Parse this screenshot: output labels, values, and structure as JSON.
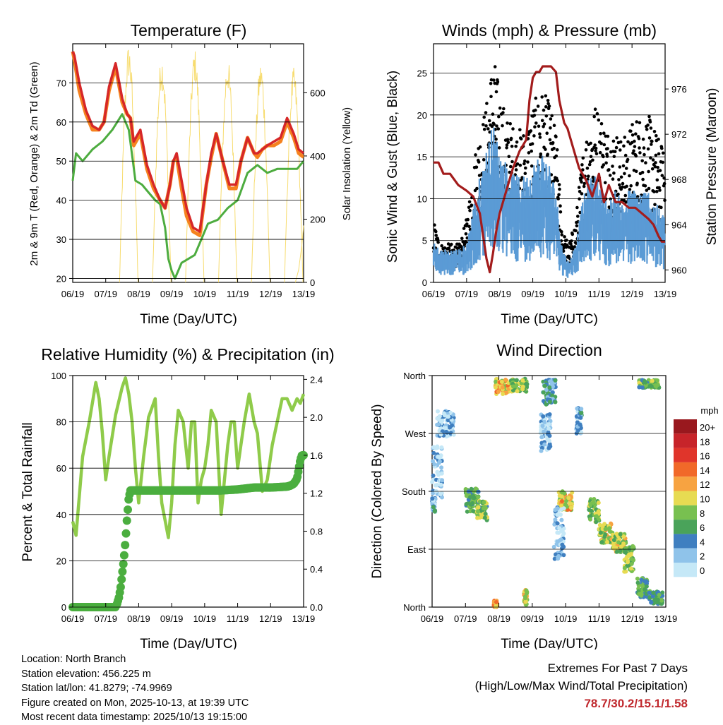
{
  "colors": {
    "temp2m": "#d62728",
    "temp9m": "#f5821f",
    "dewpoint": "#4dac3f",
    "solar": "#f7dc6f",
    "wind": "#5b9bd5",
    "gust": "#000000",
    "pressure": "#a31c1c",
    "rh": "#8fcb4a",
    "precip": "#4bae3f",
    "extremes": "#c0282d"
  },
  "chart_data": [
    {
      "type": "line",
      "title": "Temperature (F)",
      "xlabel": "Time (Day/UTC)",
      "ylabel": "2m & 9m T (Red, Orange) & 2m Td (Green)",
      "y2label": "Solar Insolation (Yellow)",
      "xticks": [
        "06/19",
        "07/19",
        "08/19",
        "09/19",
        "10/19",
        "11/19",
        "12/19",
        "13/19"
      ],
      "yticks": [
        "20",
        "30",
        "40",
        "50",
        "60",
        "70"
      ],
      "y2ticks": [
        "0",
        "200",
        "400",
        "600"
      ],
      "ylim": [
        19,
        80
      ],
      "y2lim": [
        0,
        755
      ],
      "xlim": [
        0,
        7
      ],
      "series": [
        {
          "name": "2m T",
          "x": [
            0,
            0.05,
            0.2,
            0.4,
            0.6,
            0.8,
            0.95,
            1.1,
            1.3,
            1.5,
            1.65,
            1.75,
            1.85,
            2.05,
            2.25,
            2.45,
            2.65,
            2.8,
            2.95,
            3.05,
            3.15,
            3.3,
            3.45,
            3.65,
            3.85,
            4.05,
            4.2,
            4.35,
            4.55,
            4.75,
            4.95,
            5.1,
            5.3,
            5.5,
            5.6,
            5.75,
            5.9,
            6.1,
            6.3,
            6.5,
            6.7,
            6.85,
            7.0
          ],
          "values": [
            78,
            77,
            70,
            63,
            59,
            58,
            60,
            69,
            75,
            66,
            62,
            61,
            55,
            58,
            49,
            44,
            40,
            38,
            44,
            50,
            52,
            45,
            38,
            33,
            32,
            44,
            52,
            57,
            50,
            44,
            44,
            50,
            56,
            52,
            52,
            53,
            54,
            55,
            56,
            61,
            57,
            53,
            52
          ]
        },
        {
          "name": "9m T",
          "x": [
            0,
            0.05,
            0.2,
            0.4,
            0.6,
            0.8,
            0.95,
            1.1,
            1.3,
            1.5,
            1.65,
            1.75,
            1.85,
            2.05,
            2.25,
            2.45,
            2.65,
            2.8,
            2.95,
            3.05,
            3.15,
            3.3,
            3.45,
            3.65,
            3.85,
            4.05,
            4.2,
            4.35,
            4.55,
            4.75,
            4.95,
            5.1,
            5.3,
            5.5,
            5.6,
            5.75,
            5.9,
            6.1,
            6.3,
            6.5,
            6.7,
            6.85,
            7.0
          ],
          "values": [
            78,
            76,
            68,
            62,
            58,
            58,
            60,
            68,
            74,
            65,
            62,
            61,
            54,
            57,
            48,
            43,
            40,
            38,
            44,
            50,
            51,
            43,
            36,
            32,
            31,
            44,
            51,
            57,
            50,
            43,
            43,
            50,
            56,
            52,
            51,
            53,
            54,
            54,
            55,
            60,
            56,
            52,
            51
          ]
        },
        {
          "name": "2m Td",
          "x": [
            0,
            0.1,
            0.3,
            0.6,
            0.9,
            1.2,
            1.5,
            1.7,
            1.9,
            2.1,
            2.3,
            2.5,
            2.65,
            2.8,
            2.9,
            3.0,
            3.1,
            3.3,
            3.5,
            3.7,
            3.9,
            4.1,
            4.4,
            4.7,
            5.0,
            5.3,
            5.6,
            5.9,
            6.2,
            6.5,
            6.8,
            7.0
          ],
          "values": [
            45,
            52,
            50,
            53,
            55,
            58,
            62,
            58,
            45,
            44,
            42,
            40,
            39,
            33,
            25,
            22,
            20,
            24,
            25,
            26,
            30,
            34,
            35,
            38,
            40,
            47,
            49,
            47,
            48,
            48,
            48,
            50
          ]
        }
      ],
      "solar_peaks_day": [
        1.7,
        2.7,
        3.7,
        4.7,
        5.7,
        6.7
      ],
      "solar_peak_values": [
        755,
        720,
        740,
        710,
        700,
        680
      ]
    },
    {
      "type": "scatter",
      "title": "Winds (mph) & Pressure (mb)",
      "xlabel": "Time (Day/UTC)",
      "ylabel": "Sonic Wind & Gust (Blue, Black)",
      "y2label": "Station Pressure (Maroon)",
      "xticks": [
        "06/19",
        "07/19",
        "08/19",
        "09/19",
        "10/19",
        "11/19",
        "12/19",
        "13/19"
      ],
      "yticks": [
        "0",
        "5",
        "10",
        "15",
        "20",
        "25"
      ],
      "y2ticks": [
        "960",
        "964",
        "968",
        "972",
        "976"
      ],
      "ylim": [
        0,
        28.5
      ],
      "y2lim": [
        958.9,
        980
      ],
      "xlim": [
        0,
        7
      ],
      "pressure": {
        "x": [
          0,
          0.15,
          0.3,
          0.5,
          0.75,
          1.0,
          1.2,
          1.4,
          1.5,
          1.6,
          1.7,
          1.8,
          1.9,
          2.0,
          2.2,
          2.4,
          2.6,
          2.8,
          2.9,
          3.0,
          3.1,
          3.2,
          3.3,
          3.4,
          3.55,
          3.7,
          3.8,
          3.95,
          4.05,
          4.2,
          4.4,
          4.6,
          4.8,
          5.0,
          5.15,
          5.3,
          5.5,
          5.7,
          5.9,
          6.1,
          6.3,
          6.5,
          6.65,
          6.8,
          6.9,
          7.0
        ],
        "values": [
          969.5,
          969.5,
          968.5,
          968.5,
          967.5,
          967.0,
          966.5,
          965.0,
          963.0,
          961.0,
          959.8,
          961.5,
          963.5,
          965.0,
          967.0,
          969.0,
          970.5,
          971.5,
          975.0,
          977.0,
          977.5,
          977.5,
          978.0,
          978.0,
          978.0,
          977.5,
          975.0,
          973.0,
          972.5,
          971.0,
          969.0,
          968.0,
          966.5,
          968.5,
          966.0,
          967.5,
          966.0,
          966.0,
          965.5,
          965.5,
          965.0,
          964.5,
          964.0,
          963.0,
          962.5,
          962.5
        ]
      },
      "wind_envelope": {
        "x": [
          0,
          0.2,
          0.5,
          0.8,
          1.0,
          1.3,
          1.6,
          1.8,
          2.0,
          2.2,
          2.5,
          2.8,
          3.0,
          3.3,
          3.5,
          3.7,
          3.9,
          4.1,
          4.3,
          4.5,
          4.7,
          4.9,
          5.1,
          5.3,
          5.5,
          5.7,
          5.9,
          6.1,
          6.3,
          6.5,
          6.7,
          7.0
        ],
        "wind_mean": [
          3,
          2.5,
          2.5,
          2.5,
          3,
          7,
          10,
          12,
          10,
          9,
          8,
          8,
          9,
          10,
          9,
          7,
          2.5,
          1.5,
          3,
          6,
          8,
          8,
          7,
          6,
          7,
          6,
          7,
          7,
          7,
          7,
          6,
          5
        ],
        "gust_mean": [
          5,
          3,
          3,
          3,
          5,
          11,
          14,
          18,
          15,
          13,
          12,
          12,
          14,
          15,
          14,
          12,
          4,
          3,
          5,
          10,
          13,
          14,
          13,
          12,
          12,
          11,
          12,
          13,
          13,
          13,
          12,
          10
        ]
      }
    },
    {
      "type": "line",
      "title": "Relative Humidity (%) & Precipitation (in)",
      "xlabel": "Time (Day/UTC)",
      "ylabel": "Percent & Total Rainfall",
      "xticks": [
        "06/19",
        "07/19",
        "08/19",
        "09/19",
        "10/19",
        "11/19",
        "12/19",
        "13/19"
      ],
      "yticks": [
        "0",
        "20",
        "40",
        "60",
        "80",
        "100"
      ],
      "y2ticks": [
        "0.0",
        "0.4",
        "0.8",
        "1.2",
        "1.6",
        "2.0",
        "2.4"
      ],
      "ylim": [
        0,
        100
      ],
      "y2lim": [
        0,
        2.44
      ],
      "xlim": [
        0,
        7
      ],
      "series": [
        {
          "name": "RH",
          "x": [
            0,
            0.1,
            0.3,
            0.5,
            0.7,
            0.8,
            0.9,
            1.0,
            1.1,
            1.3,
            1.5,
            1.6,
            1.7,
            1.8,
            1.9,
            2.0,
            2.15,
            2.3,
            2.5,
            2.6,
            2.7,
            2.9,
            3.0,
            3.1,
            3.2,
            3.35,
            3.5,
            3.6,
            3.7,
            3.8,
            3.9,
            4.0,
            4.1,
            4.2,
            4.35,
            4.5,
            4.6,
            4.7,
            4.8,
            4.9,
            5.0,
            5.1,
            5.2,
            5.35,
            5.5,
            5.6,
            5.75,
            5.9,
            6.05,
            6.2,
            6.35,
            6.5,
            6.65,
            6.8,
            6.9,
            7.0
          ],
          "values": [
            37,
            31,
            65,
            80,
            97,
            90,
            75,
            55,
            65,
            83,
            95,
            99,
            92,
            80,
            60,
            45,
            65,
            82,
            90,
            65,
            45,
            30,
            45,
            70,
            85,
            80,
            60,
            80,
            80,
            45,
            55,
            60,
            70,
            85,
            80,
            40,
            55,
            70,
            80,
            80,
            60,
            70,
            80,
            92,
            80,
            75,
            50,
            55,
            70,
            80,
            90,
            90,
            85,
            90,
            88,
            92
          ]
        },
        {
          "name": "Total Rainfall",
          "x": [
            0,
            1.3,
            1.35,
            1.4,
            1.45,
            1.5,
            1.55,
            1.6,
            1.65,
            1.7,
            1.75,
            2.5,
            3.5,
            4.5,
            5.0,
            5.5,
            6.0,
            6.5,
            6.6,
            6.7,
            6.8,
            6.85,
            6.9,
            6.95,
            7.0
          ],
          "values": [
            0,
            0,
            0.04,
            0.1,
            0.2,
            0.35,
            0.5,
            0.7,
            0.95,
            1.15,
            1.23,
            1.23,
            1.23,
            1.23,
            1.24,
            1.26,
            1.26,
            1.27,
            1.28,
            1.3,
            1.35,
            1.45,
            1.55,
            1.6,
            1.6
          ]
        }
      ]
    },
    {
      "type": "scatter",
      "title": "Wind Direction",
      "xlabel": "Time (Day/UTC)",
      "ylabel": "Direction (Colored By Speed)",
      "xticks": [
        "06/19",
        "07/19",
        "08/19",
        "09/19",
        "10/19",
        "11/19",
        "12/19",
        "13/19"
      ],
      "yticks": [
        "North",
        "East",
        "South",
        "West",
        "North"
      ],
      "ylim": [
        0,
        360
      ],
      "xlim": [
        0,
        7
      ],
      "legend_title": "mph",
      "legend_labels": [
        "20+",
        "18",
        "16",
        "14",
        "12",
        "10",
        "8",
        "6",
        "4",
        "2",
        "0"
      ],
      "legend_colors": [
        "#99181e",
        "#c7242a",
        "#e0352b",
        "#f16929",
        "#f7a341",
        "#e7db52",
        "#78c050",
        "#4aa35a",
        "#3f7fc0",
        "#8fc3ea",
        "#c5e8f7"
      ],
      "clusters": [
        {
          "day": 0.05,
          "dir": 160,
          "spread_d": 0.05,
          "spread_a": 12,
          "speed": 3
        },
        {
          "day": 0.4,
          "dir": 285,
          "spread_d": 0.25,
          "spread_a": 20,
          "speed": 2
        },
        {
          "day": 0.15,
          "dir": 210,
          "spread_d": 0.15,
          "spread_a": 40,
          "speed": 1
        },
        {
          "day": 1.2,
          "dir": 165,
          "spread_d": 0.2,
          "spread_a": 20,
          "speed": 6
        },
        {
          "day": 1.5,
          "dir": 150,
          "spread_d": 0.15,
          "spread_a": 15,
          "speed": 7
        },
        {
          "day": 2.1,
          "dir": 343,
          "spread_d": 0.2,
          "spread_a": 12,
          "speed": 11
        },
        {
          "day": 2.6,
          "dir": 345,
          "spread_d": 0.25,
          "spread_a": 10,
          "speed": 8
        },
        {
          "day": 3.5,
          "dir": 335,
          "spread_d": 0.2,
          "spread_a": 20,
          "speed": 4
        },
        {
          "day": 3.4,
          "dir": 270,
          "spread_d": 0.15,
          "spread_a": 30,
          "speed": 2
        },
        {
          "day": 2.8,
          "dir": 15,
          "spread_d": 0.05,
          "spread_a": 12,
          "speed": 10
        },
        {
          "day": 4.0,
          "dir": 165,
          "spread_d": 0.2,
          "spread_a": 15,
          "speed": 11
        },
        {
          "day": 4.4,
          "dir": 290,
          "spread_d": 0.08,
          "spread_a": 20,
          "speed": 3
        },
        {
          "day": 4.85,
          "dir": 150,
          "spread_d": 0.15,
          "spread_a": 18,
          "speed": 8
        },
        {
          "day": 5.2,
          "dir": 115,
          "spread_d": 0.2,
          "spread_a": 15,
          "speed": 9
        },
        {
          "day": 5.6,
          "dir": 100,
          "spread_d": 0.2,
          "spread_a": 15,
          "speed": 9
        },
        {
          "day": 5.9,
          "dir": 75,
          "spread_d": 0.15,
          "spread_a": 20,
          "speed": 8
        },
        {
          "day": 6.3,
          "dir": 30,
          "spread_d": 0.15,
          "spread_a": 15,
          "speed": 6
        },
        {
          "day": 6.7,
          "dir": 15,
          "spread_d": 0.2,
          "spread_a": 10,
          "speed": 6
        },
        {
          "day": 6.5,
          "dir": 347,
          "spread_d": 0.3,
          "spread_a": 6,
          "speed": 7
        },
        {
          "day": 3.8,
          "dir": 115,
          "spread_d": 0.15,
          "spread_a": 40,
          "speed": 2
        },
        {
          "day": 1.9,
          "dir": 5,
          "spread_d": 0.05,
          "spread_a": 5,
          "speed": 12
        }
      ]
    }
  ],
  "info": {
    "location": "Location: North Branch",
    "elevation": "Station elevation: 456.225 m",
    "latlon": "Station lat/lon: 41.8279; -74.9969",
    "created": "Figure created on Mon, 2025-10-13, at 19:39 UTC",
    "timestamp": "Most recent data timestamp: 2025/10/13 19:15:00"
  },
  "extremes": {
    "line1": "Extremes For Past 7 Days",
    "line2": "(High/Low/Max Wind/Total Precipitation)",
    "values": "78.7/30.2/15.1/1.58"
  }
}
